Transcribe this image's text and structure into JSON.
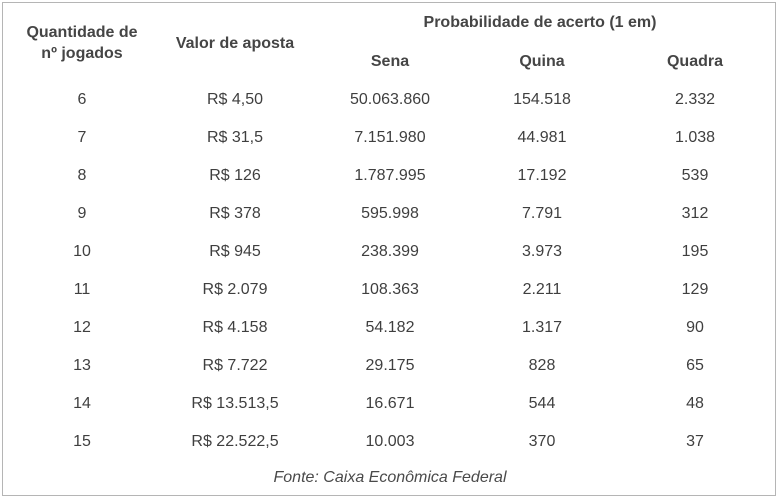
{
  "headers": {
    "quantity_line1": "Quantidade de",
    "quantity_line2": "nº jogados",
    "bet_value": "Valor de aposta",
    "probability": "Probabilidade de acerto (1 em)",
    "sena": "Sena",
    "quina": "Quina",
    "quadra": "Quadra"
  },
  "rows": [
    [
      "6",
      "R$ 4,50",
      "50.063.860",
      "154.518",
      "2.332"
    ],
    [
      "7",
      "R$ 31,5",
      "7.151.980",
      "44.981",
      "1.038"
    ],
    [
      "8",
      "R$ 126",
      "1.787.995",
      "17.192",
      "539"
    ],
    [
      "9",
      "R$ 378",
      "595.998",
      "7.791",
      "312"
    ],
    [
      "10",
      "R$ 945",
      "238.399",
      "3.973",
      "195"
    ],
    [
      "11",
      "R$ 2.079",
      "108.363",
      "2.211",
      "129"
    ],
    [
      "12",
      "R$ 4.158",
      "54.182",
      "1.317",
      "90"
    ],
    [
      "13",
      "R$ 7.722",
      "29.175",
      "828",
      "65"
    ],
    [
      "14",
      "R$ 13.513,5",
      "16.671",
      "544",
      "48"
    ],
    [
      "15",
      "R$ 22.522,5",
      "10.003",
      "370",
      "37"
    ]
  ],
  "source": "Fonte: Caixa Econômica Federal"
}
